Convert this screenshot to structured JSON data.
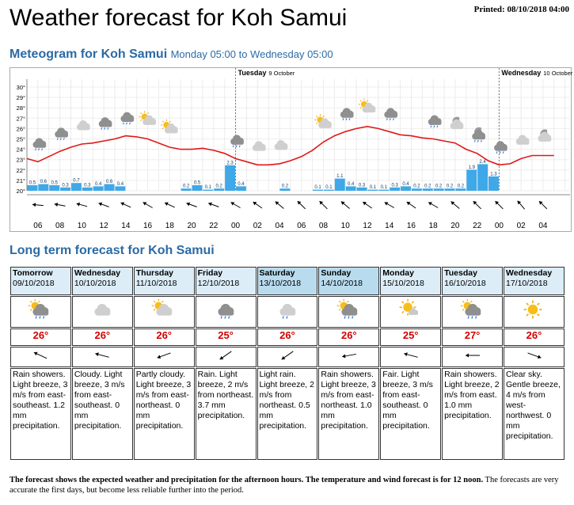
{
  "header": {
    "title": "Weather forecast for Koh Samui",
    "printed": "Printed: 08/10/2018 04:00"
  },
  "meteogram": {
    "title": "Meteogram for Koh Samui",
    "period": "Monday 05:00 to Wednesday 05:00",
    "days": [
      {
        "name": "Tuesday",
        "date": "9 October"
      },
      {
        "name": "Wednesday",
        "date": "10 October"
      }
    ],
    "hours": [
      "06",
      "08",
      "10",
      "12",
      "14",
      "16",
      "18",
      "20",
      "22",
      "00",
      "02",
      "04",
      "06",
      "08",
      "10",
      "12",
      "14",
      "16",
      "18",
      "20",
      "22",
      "00",
      "02",
      "04"
    ],
    "ylim": [
      20,
      30
    ],
    "yticks": [
      {
        "value": 20,
        "label": "20°"
      },
      {
        "value": 21,
        "label": "21°"
      },
      {
        "value": 22,
        "label": "22°"
      },
      {
        "value": 23,
        "label": "23°"
      },
      {
        "value": 24,
        "label": "24°"
      },
      {
        "value": 25,
        "label": "25°"
      },
      {
        "value": 26,
        "label": "26°"
      },
      {
        "value": 27,
        "label": "27°"
      },
      {
        "value": 28,
        "label": "28°"
      },
      {
        "value": 29,
        "label": "29°"
      },
      {
        "value": 30,
        "label": "30°"
      }
    ],
    "temperature": [
      23.1,
      22.8,
      23.3,
      23.8,
      24.2,
      24.5,
      24.6,
      24.8,
      25.0,
      25.3,
      25.2,
      25.0,
      24.6,
      24.2,
      24.0,
      24.0,
      24.1,
      23.9,
      23.6,
      23.1,
      22.8,
      22.5,
      22.5,
      22.6,
      22.9,
      23.3,
      23.9,
      24.7,
      25.3,
      25.7,
      26.0,
      26.2,
      26.0,
      25.7,
      25.4,
      25.3,
      25.1,
      25.0,
      24.8,
      24.6,
      24.0,
      23.6,
      22.9,
      22.5,
      22.6,
      23.1,
      23.4,
      23.4,
      23.4
    ],
    "precipitation": [
      0.5,
      0.6,
      0.5,
      0.3,
      0.7,
      0.3,
      0.4,
      0.6,
      0.4,
      null,
      null,
      null,
      null,
      null,
      0.2,
      0.5,
      0.1,
      0.2,
      2.3,
      0.4,
      null,
      null,
      null,
      0.2,
      null,
      null,
      0.1,
      0.1,
      1.1,
      0.4,
      0.3,
      0.1,
      0.1,
      0.3,
      0.4,
      0.2,
      0.2,
      0.2,
      0.2,
      0.2,
      1.9,
      2.4,
      1.3,
      null,
      null,
      null,
      null,
      null
    ]
  },
  "longterm": {
    "title": "Long term forecast for Koh Samui",
    "days": [
      {
        "day": "Tomorrow",
        "date": "09/10/2018",
        "temp": "26°",
        "text": "Rain showers. Light breeze, 3 m/s from east-southeast. 1.2 mm precipitation."
      },
      {
        "day": "Wednesday",
        "date": "10/10/2018",
        "temp": "26°",
        "text": "Cloudy. Light breeze, 3 m/s from east-southeast. 0 mm precipitation."
      },
      {
        "day": "Thursday",
        "date": "11/10/2018",
        "temp": "26°",
        "text": "Partly cloudy. Light breeze, 3 m/s from east-northeast. 0 mm precipitation."
      },
      {
        "day": "Friday",
        "date": "12/10/2018",
        "temp": "25°",
        "text": "Rain. Light breeze, 2 m/s from northeast. 3.7 mm precipitation."
      },
      {
        "day": "Saturday",
        "date": "13/10/2018",
        "temp": "26°",
        "text": "Light rain. Light breeze, 2 m/s from northeast. 0.5 mm precipitation."
      },
      {
        "day": "Sunday",
        "date": "14/10/2018",
        "temp": "26°",
        "text": "Rain showers. Light breeze, 3 m/s from east-northeast. 1.0 mm precipitation."
      },
      {
        "day": "Monday",
        "date": "15/10/2018",
        "temp": "25°",
        "text": "Fair. Light breeze, 3 m/s from east-southeast. 0 mm precipitation."
      },
      {
        "day": "Tuesday",
        "date": "16/10/2018",
        "temp": "27°",
        "text": "Rain showers. Light breeze, 2 m/s from east. 1.0 mm precipitation."
      },
      {
        "day": "Wednesday",
        "date": "17/10/2018",
        "temp": "26°",
        "text": "Clear sky. Gentle breeze, 4 m/s from west-northwest. 0 mm precipitation."
      }
    ]
  },
  "footer": {
    "bold": "The forecast shows the expected weather and precipitation for the afternoon hours. The temperature and wind forecast is for 12 noon.",
    "normal": "The forecasts are very accurate the first days, but become less reliable further into the period."
  }
}
